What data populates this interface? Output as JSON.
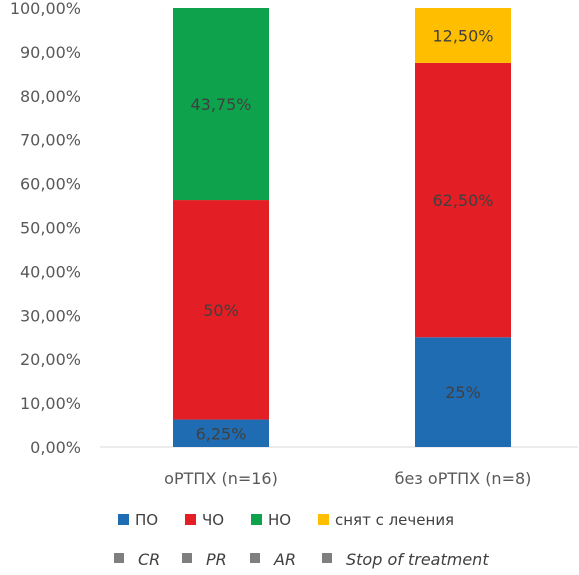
{
  "chart_data": {
    "type": "bar",
    "stacked": true,
    "categories": [
      "оРТПХ (n=16)",
      "без оРТПХ (n=8)"
    ],
    "yticks": [
      "0,00%",
      "10,00%",
      "20,00%",
      "30,00%",
      "40,00%",
      "50,00%",
      "60,00%",
      "70,00%",
      "80,00%",
      "90,00%",
      "100,00%"
    ],
    "ylim": [
      0,
      100
    ],
    "series": [
      {
        "name": "ПО",
        "color": "#1f6cb3",
        "values": [
          6.25,
          25
        ],
        "labels": [
          "6,25%",
          "25%"
        ]
      },
      {
        "name": "ЧО",
        "color": "#e31e24",
        "values": [
          50,
          62.5
        ],
        "labels": [
          "50%",
          "62,50%"
        ]
      },
      {
        "name": "НО",
        "color": "#0ea24d",
        "values": [
          43.75,
          0
        ],
        "labels": [
          "43,75%",
          ""
        ]
      },
      {
        "name": "снят с лечения",
        "color": "#ffbf00",
        "values": [
          0,
          12.5
        ],
        "labels": [
          "",
          "12,50%"
        ]
      }
    ],
    "legend_position": "bottom",
    "legend_secondary": [
      "CR",
      "PR",
      "AR",
      "Stop of treatment"
    ],
    "legend_secondary_color": "#7f7f7f",
    "grid": false
  }
}
